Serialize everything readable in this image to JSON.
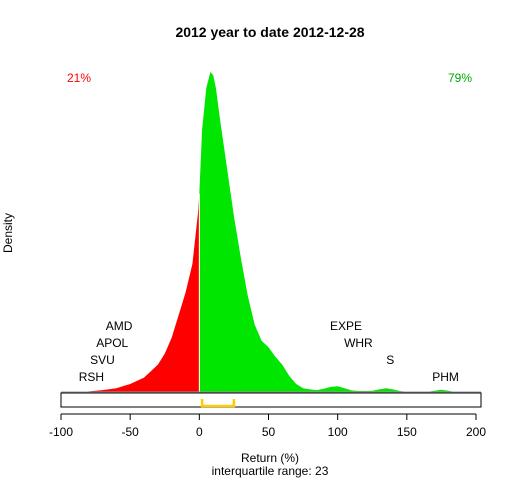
{
  "chart_data": {
    "type": "area",
    "title": "2012  year to date 2012-12-28",
    "xlabel": "Return (%)",
    "sublabel": "interquartile range: 23",
    "ylabel": "Density",
    "xlim": [
      -100,
      200
    ],
    "x_ticks": [
      -100,
      -50,
      0,
      50,
      100,
      150,
      200
    ],
    "split_at": 0,
    "negative_share": "21%",
    "positive_share": "79%",
    "negative_color": "#ff0000",
    "positive_color": "#00e600",
    "iqr_color": "#ffcc00",
    "iqr": [
      2,
      25
    ],
    "density": {
      "x": [
        -85,
        -80,
        -70,
        -60,
        -50,
        -40,
        -30,
        -25,
        -20,
        -15,
        -10,
        -5,
        -1,
        0,
        2,
        5,
        8,
        10,
        12,
        15,
        20,
        25,
        30,
        35,
        40,
        45,
        50,
        55,
        60,
        65,
        70,
        75,
        80,
        85,
        90,
        95,
        100,
        105,
        110,
        115,
        120,
        125,
        130,
        135,
        140,
        145,
        150,
        155,
        160,
        165,
        170,
        175,
        180,
        185
      ],
      "y": [
        0.0,
        0.002,
        0.006,
        0.012,
        0.025,
        0.045,
        0.085,
        0.12,
        0.17,
        0.24,
        0.31,
        0.4,
        0.56,
        0.62,
        0.82,
        0.95,
        1.0,
        0.99,
        0.95,
        0.85,
        0.7,
        0.55,
        0.42,
        0.3,
        0.21,
        0.16,
        0.14,
        0.11,
        0.085,
        0.05,
        0.025,
        0.012,
        0.008,
        0.006,
        0.01,
        0.016,
        0.018,
        0.012,
        0.005,
        0.003,
        0.003,
        0.004,
        0.008,
        0.012,
        0.008,
        0.003,
        0.001,
        0.0,
        0.0,
        0.001,
        0.004,
        0.007,
        0.004,
        0.0
      ]
    },
    "annotations": [
      {
        "label": "AMD",
        "x": -58,
        "level": 4
      },
      {
        "label": "APOL",
        "x": -63,
        "level": 3
      },
      {
        "label": "SVU",
        "x": -70,
        "level": 2
      },
      {
        "label": "RSH",
        "x": -78,
        "level": 1
      },
      {
        "label": "EXPE",
        "x": 106,
        "level": 4
      },
      {
        "label": "WHR",
        "x": 115,
        "level": 3
      },
      {
        "label": "S",
        "x": 138,
        "level": 2
      },
      {
        "label": "PHM",
        "x": 178,
        "level": 1
      }
    ]
  }
}
